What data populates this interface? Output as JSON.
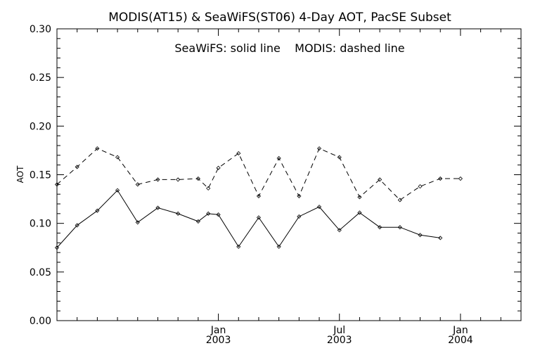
{
  "chart_data": {
    "type": "line",
    "title": "MODIS(AT15) & SeaWiFS(ST06) 4-Day AOT, PacSE Subset",
    "annotation": "SeaWiFS: solid line    MODIS: dashed line",
    "xlabel": "",
    "ylabel": "AOT",
    "ylim": [
      0.0,
      0.3
    ],
    "y_ticks": [
      "0.00",
      "0.05",
      "0.10",
      "0.15",
      "0.20",
      "0.25",
      "0.30"
    ],
    "x_ticks": [
      {
        "month": "Jan",
        "year": "2003",
        "x": 6
      },
      {
        "month": "Jul",
        "year": "2003",
        "x": 12
      },
      {
        "month": "Jan",
        "year": "2004",
        "x": 18
      }
    ],
    "xlim": [
      -2,
      21
    ],
    "grid": false,
    "x": [
      -2.0,
      -1.0,
      0.0,
      1.0,
      2.0,
      3.0,
      4.0,
      5.0,
      5.5,
      6.0,
      7.0,
      8.0,
      9.0,
      10.0,
      11.0,
      12.0,
      13.0,
      14.0,
      15.0,
      16.0,
      17.0,
      18.0,
      19.0,
      20.0,
      21.0
    ],
    "series": [
      {
        "name": "SeaWiFS",
        "style": "solid",
        "values": [
          0.075,
          0.098,
          0.113,
          0.134,
          0.101,
          0.116,
          0.11,
          0.102,
          0.11,
          0.109,
          0.076,
          0.106,
          0.076,
          0.107,
          0.117,
          0.093,
          0.111,
          0.096,
          0.096,
          0.088,
          0.085,
          null,
          null,
          null,
          null
        ]
      },
      {
        "name": "MODIS",
        "style": "dashed",
        "values": [
          0.14,
          0.158,
          0.177,
          0.168,
          0.14,
          0.145,
          0.145,
          0.146,
          0.136,
          0.157,
          0.172,
          0.128,
          0.167,
          0.128,
          0.177,
          0.168,
          0.127,
          0.145,
          0.124,
          0.138,
          0.146,
          0.146,
          null,
          null,
          null
        ]
      }
    ]
  }
}
